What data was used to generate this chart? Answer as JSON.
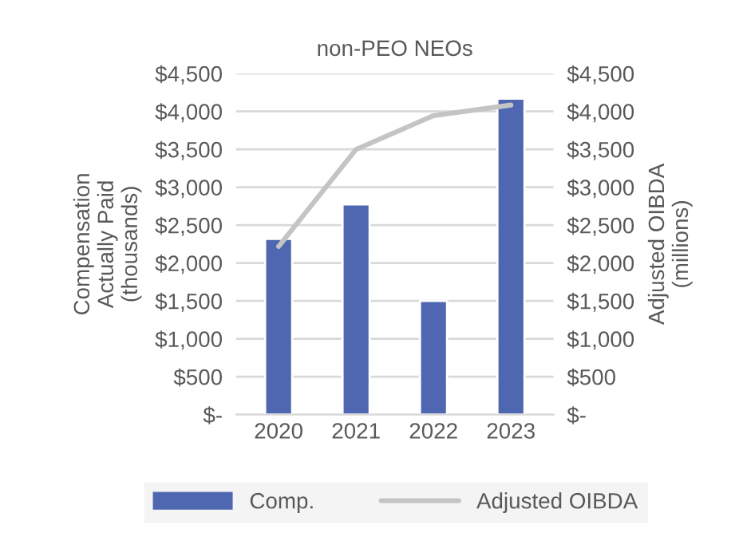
{
  "chart_data": {
    "type": "bar",
    "title": "non-PEO NEOs",
    "categories": [
      "2020",
      "2021",
      "2022",
      "2023"
    ],
    "ylabel": "Compensation\nActually Paid\n(thousands)",
    "y2label": "Adjusted OIBDA\n(millions)",
    "series": [
      {
        "name": "Comp.",
        "color": "#4e67b0",
        "values": [
          2320,
          2775,
          1500,
          4170
        ]
      },
      {
        "name": "Adjusted OIBDA",
        "type": "line",
        "axis": "y2",
        "color": "#c4c4c4",
        "values": [
          2220,
          3500,
          3945,
          4085
        ]
      }
    ],
    "ylim": [
      0,
      4500
    ],
    "yticks": [
      {
        "value": 0,
        "label": "$-"
      },
      {
        "value": 500,
        "label": "$500"
      },
      {
        "value": 1000,
        "label": "$1,000"
      },
      {
        "value": 1500,
        "label": "$1,500"
      },
      {
        "value": 2000,
        "label": "$2,000"
      },
      {
        "value": 2500,
        "label": "$2,500"
      },
      {
        "value": 3000,
        "label": "$3,000"
      },
      {
        "value": 3500,
        "label": "$3,500"
      },
      {
        "value": 4000,
        "label": "$4,000"
      },
      {
        "value": 4500,
        "label": "$4,500"
      }
    ],
    "y2lim": [
      0,
      4500
    ],
    "y2ticks": [
      {
        "value": 0,
        "label": "$-"
      },
      {
        "value": 500,
        "label": "$500"
      },
      {
        "value": 1000,
        "label": "$1,000"
      },
      {
        "value": 1500,
        "label": "$1,500"
      },
      {
        "value": 2000,
        "label": "$2,000"
      },
      {
        "value": 2500,
        "label": "$2,500"
      },
      {
        "value": 3000,
        "label": "$3,000"
      },
      {
        "value": 3500,
        "label": "$3,500"
      },
      {
        "value": 4000,
        "label": "$4,000"
      },
      {
        "value": 4500,
        "label": "$4,500"
      }
    ],
    "grid": "y",
    "legend": "bottom",
    "marker": "none"
  }
}
